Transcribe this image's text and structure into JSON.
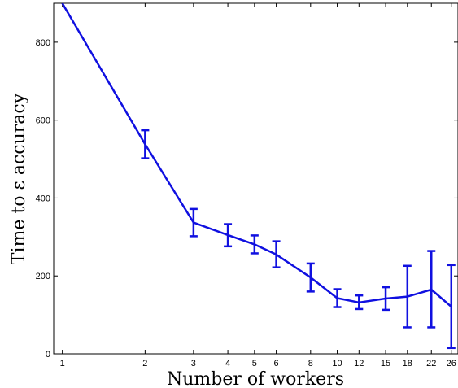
{
  "chart_data": {
    "type": "line",
    "title": "",
    "xlabel": "Number of workers",
    "ylabel": "Time to ε accuracy",
    "x_scale": "log",
    "xlim": [
      0.93,
      27.5
    ],
    "ylim": [
      0,
      900
    ],
    "x_ticks": [
      1,
      2,
      3,
      4,
      5,
      6,
      8,
      10,
      12,
      15,
      18,
      22,
      26
    ],
    "x_tick_labels": [
      "1",
      "2",
      "3",
      "4",
      "5",
      "6",
      "8",
      "10",
      "12",
      "15",
      "18",
      "22",
      "26"
    ],
    "y_ticks": [
      0,
      200,
      400,
      600,
      800
    ],
    "y_tick_labels": [
      "0",
      "200",
      "400",
      "600",
      "800"
    ],
    "grid": false,
    "legend": "none",
    "series": [
      {
        "color": "#1010e0",
        "x": [
          1,
          2,
          3,
          4,
          5,
          6,
          8,
          10,
          12,
          15,
          18,
          22,
          26
        ],
        "y": [
          900,
          538,
          337,
          305,
          281,
          255,
          196,
          143,
          132,
          142,
          147,
          165,
          121
        ],
        "error_low": [
          null,
          502,
          302,
          276,
          258,
          222,
          160,
          120,
          115,
          113,
          68,
          68,
          15
        ],
        "error_high": [
          null,
          574,
          372,
          333,
          304,
          289,
          232,
          166,
          150,
          171,
          226,
          264,
          228
        ]
      }
    ]
  }
}
